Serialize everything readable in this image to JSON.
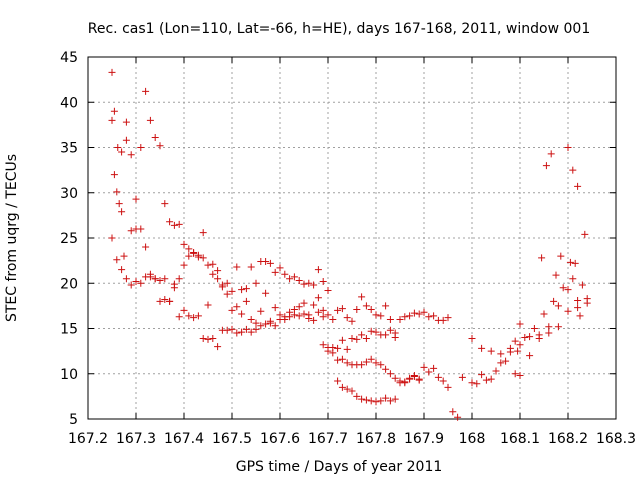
{
  "chart_data": {
    "type": "scatter",
    "title": "Rec. cas1 (Lon=110, Lat=-66, h=HE), days 167-168, 2011, window 001",
    "xlabel": "GPS time / Days of year 2011",
    "ylabel": "STEC from uqrg / TECUs",
    "xlim": [
      167.2,
      168.3
    ],
    "ylim": [
      5,
      45
    ],
    "xticks": [
      167.2,
      167.3,
      167.4,
      167.5,
      167.6,
      167.7,
      167.8,
      167.9,
      168,
      168.1,
      168.2,
      168.3
    ],
    "xtick_labels": [
      "167.2",
      "167.3",
      "167.4",
      "167.5",
      "167.6",
      "167.7",
      "167.8",
      "167.9",
      "168",
      "168.1",
      "168.2",
      "168.3"
    ],
    "yticks": [
      5,
      10,
      15,
      20,
      25,
      30,
      35,
      40,
      45
    ],
    "ytick_labels": [
      "5",
      "10",
      "15",
      "20",
      "25",
      "30",
      "35",
      "40",
      "45"
    ],
    "grid": true,
    "marker": "plus",
    "color": "#cc1111",
    "series": [
      {
        "x": [
          167.25,
          167.255,
          167.262,
          167.27,
          167.28,
          167.29,
          167.3,
          167.31,
          167.32,
          167.33,
          167.34,
          167.35,
          167.36,
          167.37,
          167.38,
          167.39,
          167.4,
          167.41,
          167.42,
          167.43,
          167.44,
          167.45,
          167.46,
          167.47,
          167.48,
          167.49,
          167.5,
          167.51,
          167.52,
          167.53,
          167.54,
          167.55,
          167.56,
          167.57,
          167.58,
          167.59,
          167.6,
          167.61,
          167.62,
          167.63,
          167.64,
          167.65,
          167.66,
          167.67,
          167.68,
          167.69,
          167.7,
          167.25,
          167.255,
          167.26,
          167.265,
          167.27,
          167.275,
          167.28,
          167.29,
          167.3,
          167.31,
          167.32,
          167.33,
          167.34,
          167.35,
          167.36,
          167.37,
          167.38,
          167.39,
          167.4,
          167.41,
          167.42,
          167.43,
          167.44,
          167.45,
          167.46,
          167.47,
          167.48,
          167.49,
          167.5,
          167.51,
          167.52,
          167.53,
          167.54,
          167.55,
          167.56,
          167.57,
          167.58,
          167.59,
          167.6,
          167.61,
          167.62,
          167.63,
          167.64,
          167.65,
          167.66,
          167.67,
          167.68,
          167.69,
          167.7,
          167.71,
          167.72,
          167.73,
          167.74,
          167.75,
          167.76,
          167.77,
          167.78,
          167.79,
          167.8,
          167.81,
          167.82,
          167.83,
          167.84,
          167.25,
          167.26,
          167.27,
          167.28,
          167.29,
          167.3,
          167.31,
          167.32,
          167.33,
          167.34,
          167.35,
          167.36,
          167.37,
          167.38,
          167.39,
          167.4,
          167.41,
          167.42,
          167.43,
          167.44,
          167.45,
          167.46,
          167.47,
          167.48,
          167.49,
          167.5,
          167.51,
          167.52,
          167.53,
          167.54,
          167.55,
          167.56,
          167.57,
          167.58,
          167.59,
          167.6,
          167.61,
          167.62,
          167.63,
          167.64,
          167.65,
          167.66,
          167.67,
          167.68,
          167.69,
          167.7,
          167.71,
          167.72,
          167.73,
          167.74,
          167.75,
          167.76,
          167.77,
          167.78,
          167.79,
          167.8,
          167.81,
          167.82,
          167.83,
          167.84,
          167.85,
          167.86,
          167.87,
          167.88,
          167.89,
          167.9,
          167.91,
          167.92,
          167.93,
          167.94,
          167.95,
          167.69,
          167.7,
          167.71,
          167.72,
          167.73,
          167.74,
          167.75,
          167.76,
          167.77,
          167.78,
          167.79,
          167.8,
          167.81,
          167.82,
          167.83,
          167.84,
          167.85,
          167.86,
          167.87,
          167.88,
          167.89,
          167.9,
          167.91,
          167.92,
          167.93,
          167.94,
          167.95,
          167.96,
          167.97,
          167.98,
          168.0,
          168.01,
          168.02,
          168.03,
          168.04,
          168.05,
          168.06,
          168.07,
          168.08,
          168.09,
          168.1,
          167.72,
          167.73,
          167.74,
          167.75,
          167.76,
          167.77,
          167.78,
          167.79,
          167.8,
          167.81,
          167.82,
          167.83,
          167.84,
          167.85,
          167.86,
          167.87,
          167.88,
          167.89,
          168.0,
          168.02,
          168.04,
          168.06,
          168.08,
          168.1,
          168.12,
          168.14,
          168.16,
          168.18,
          168.2,
          168.22,
          168.24,
          168.1,
          168.12,
          168.14,
          168.16,
          168.18,
          168.2,
          168.22,
          168.24,
          168.09,
          168.11,
          168.13,
          168.15,
          168.17,
          168.19,
          168.21,
          168.23,
          168.095,
          168.145,
          168.205,
          168.235,
          168.175,
          168.155,
          168.225,
          168.215,
          168.185,
          168.165,
          168.2,
          168.21,
          168.22
        ],
        "y": [
          43.3,
          39,
          35,
          34.5,
          37.8,
          34.2,
          29.3,
          35,
          41.2,
          38,
          36.1,
          35.2,
          28.8,
          26.8,
          26.4,
          26.5,
          24.3,
          23.8,
          23.4,
          22.9,
          25.6,
          22,
          21,
          20.5,
          19.6,
          18.8,
          17,
          21.8,
          19.3,
          19.4,
          21.8,
          20,
          22.4,
          22.4,
          22.2,
          21.2,
          21.7,
          21,
          20.5,
          20.7,
          20.3,
          19.9,
          20,
          19.8,
          21.5,
          20.2,
          19.2,
          38,
          32,
          30.1,
          28.8,
          27.9,
          23,
          35.8,
          25.8,
          26,
          26,
          24,
          21,
          20.5,
          20.3,
          20.5,
          18,
          19.9,
          20.5,
          22,
          23,
          23.3,
          23.1,
          22.8,
          17.6,
          22.1,
          21.4,
          19.8,
          20,
          19.1,
          17.4,
          16.6,
          18,
          16,
          15.6,
          16.9,
          18.9,
          15.8,
          17.3,
          16.5,
          16.3,
          16.8,
          17.1,
          17.4,
          17.8,
          16.5,
          17.6,
          18.4,
          17,
          16.5,
          16,
          17,
          17.2,
          16.2,
          15.8,
          17.1,
          18.5,
          17.5,
          17.1,
          16.5,
          16.4,
          17.5,
          16,
          14.5,
          25,
          22.6,
          21.5,
          20.5,
          19.8,
          20.2,
          20,
          20.7,
          20.7,
          20.5,
          18,
          18.2,
          18,
          19.5,
          16.3,
          17,
          16.4,
          16.2,
          16.4,
          13.9,
          13.8,
          13.9,
          13,
          14.8,
          14.8,
          14.9,
          14.5,
          14.6,
          14.9,
          14.6,
          14.9,
          15.3,
          15.5,
          15.6,
          15.3,
          16,
          16,
          16.3,
          16.5,
          16.4,
          16.6,
          16.1,
          15.9,
          16.8,
          16.3,
          12.5,
          12.9,
          12.8,
          13.7,
          12.7,
          13.9,
          13.8,
          14.3,
          13.9,
          14.7,
          14.6,
          14.3,
          14.3,
          14.8,
          14,
          16,
          16.3,
          16.4,
          16.7,
          16.6,
          16.8,
          16.3,
          16.4,
          15.9,
          15.9,
          16.2,
          13.2,
          12.9,
          12.3,
          11.5,
          11.6,
          11.2,
          11,
          11,
          11,
          11.3,
          11.6,
          11.2,
          11,
          10.5,
          10,
          9.5,
          9.2,
          9.1,
          9.4,
          9.7,
          9.4,
          10.7,
          10.2,
          10.6,
          9.6,
          9.2,
          8.5,
          5.8,
          5.2,
          9.6,
          9,
          8.9,
          9.9,
          9.3,
          9.4,
          10.3,
          11.2,
          11.4,
          12.4,
          13.6,
          15.5,
          9.2,
          8.5,
          8.3,
          8.1,
          7.5,
          7.2,
          7.1,
          7.0,
          6.9,
          7.0,
          7.3,
          7.0,
          7.2,
          9.0,
          9.0,
          9.5,
          9.8,
          9.3,
          13.9,
          12.8,
          12.5,
          12.2,
          12.8,
          13.2,
          14.1,
          14.3,
          14.5,
          15.2,
          16.9,
          17.3,
          18.3,
          9.8,
          12.0,
          13.9,
          15.2,
          17.5,
          19.3,
          18.1,
          17.8,
          10.0,
          14.0,
          15.0,
          16.6,
          18.0,
          19.5,
          20.5,
          19.8,
          12.5,
          22.8,
          22.3,
          25.4,
          20.9,
          33.0,
          16.4,
          22.2,
          23.0,
          34.3,
          35.0,
          32.5,
          30.7
        ]
      }
    ]
  }
}
